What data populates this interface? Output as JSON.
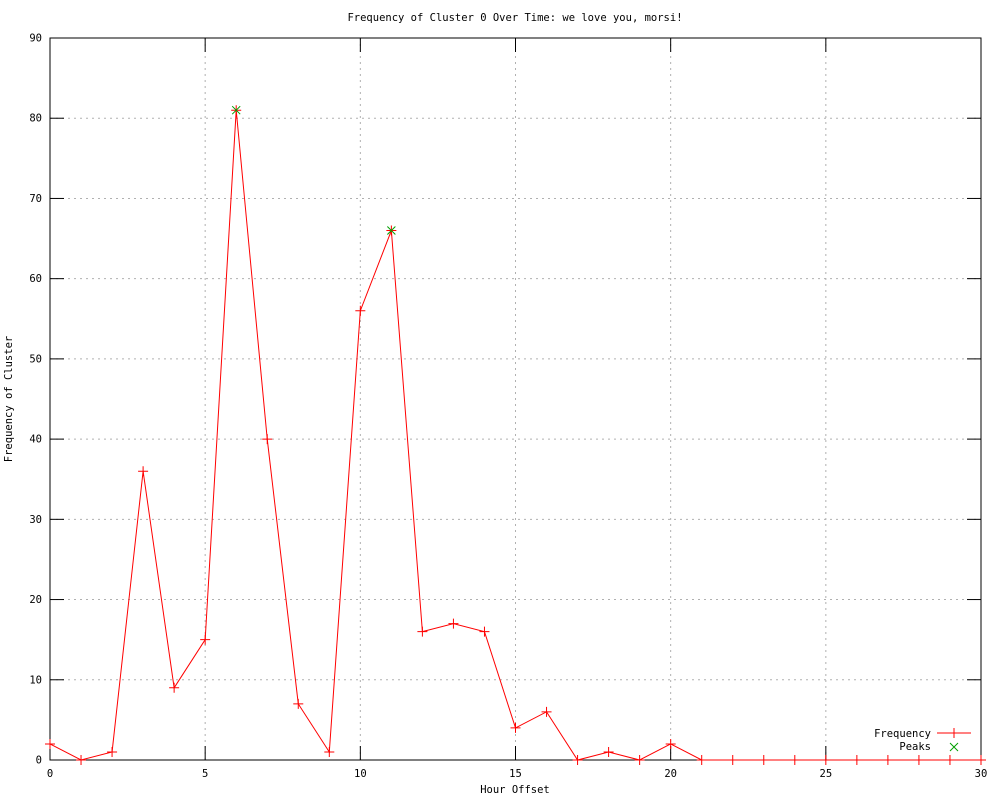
{
  "window": {
    "background": "#ffffff"
  },
  "chart_data": {
    "type": "line",
    "title": "Frequency of Cluster 0 Over Time: we love you, morsi!",
    "xlabel": "Hour Offset",
    "ylabel": "Frequency of Cluster",
    "xlim": [
      0,
      30
    ],
    "ylim": [
      0,
      90
    ],
    "x_ticks": [
      0,
      5,
      10,
      15,
      20,
      25,
      30
    ],
    "y_ticks": [
      0,
      10,
      20,
      30,
      40,
      50,
      60,
      70,
      80,
      90
    ],
    "grid": true,
    "grid_style": "dotted",
    "legend_position": "bottom-right",
    "series": [
      {
        "name": "Frequency",
        "color": "#ff0000",
        "marker": "plus",
        "line": true,
        "x": [
          0,
          1,
          2,
          3,
          4,
          5,
          6,
          7,
          8,
          9,
          10,
          11,
          12,
          13,
          14,
          15,
          16,
          17,
          18,
          19,
          20,
          21,
          22,
          23,
          24,
          25,
          26,
          27,
          28,
          29,
          30
        ],
        "values": [
          2,
          0,
          1,
          36,
          9,
          15,
          81,
          40,
          7,
          1,
          56,
          66,
          16,
          17,
          16,
          4,
          6,
          0,
          1,
          0,
          2,
          0,
          0,
          0,
          0,
          0,
          0,
          0,
          0,
          0,
          0
        ]
      },
      {
        "name": "Peaks",
        "color": "#00a000",
        "marker": "cross",
        "line": false,
        "x": [
          6,
          11
        ],
        "values": [
          81,
          66
        ]
      }
    ]
  },
  "colors": {
    "axis": "#000000",
    "grid": "#b0b0b0",
    "text": "#000000",
    "frequency_series": "#ff0000",
    "peaks_series": "#00a000"
  }
}
